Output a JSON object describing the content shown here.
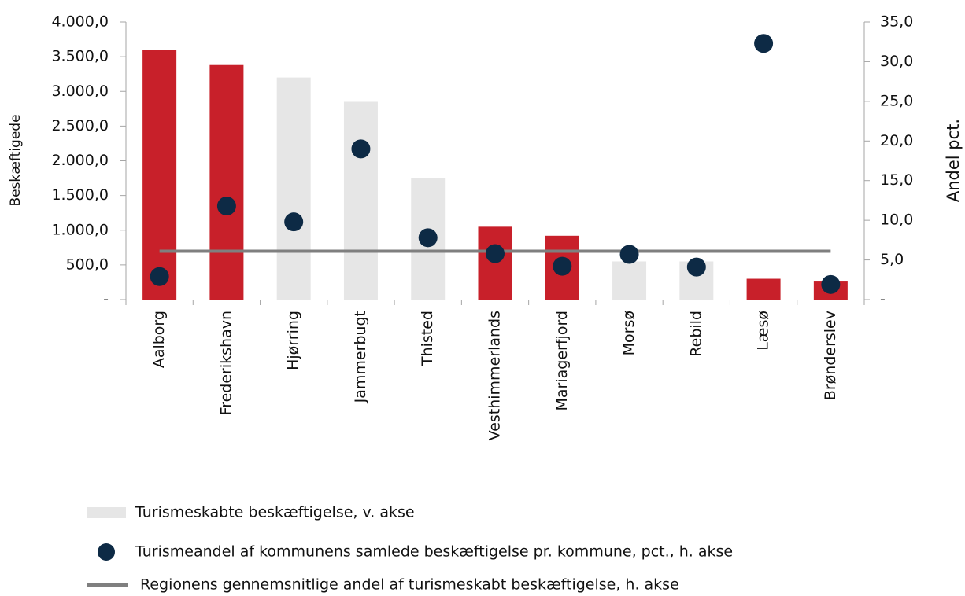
{
  "chart_data": {
    "type": "bar",
    "y_label": "Beskæftigede",
    "y2_label": "Andel pct.",
    "categories": [
      "Aalborg",
      "Frederikshavn",
      "Hjørring",
      "Jammerbugt",
      "Thisted",
      "Vesthimmerlands",
      "Mariagerfjord",
      "Morsø",
      "Rebild",
      "Læsø",
      "Brønderslev"
    ],
    "ylim": [
      0,
      4000
    ],
    "yticks": [
      {
        "value": 0,
        "label": "-"
      },
      {
        "value": 500,
        "label": "500,0"
      },
      {
        "value": 1000,
        "label": "1.000,0"
      },
      {
        "value": 1500,
        "label": "1.500,0"
      },
      {
        "value": 2000,
        "label": "2.000,0"
      },
      {
        "value": 2500,
        "label": "2.500,0"
      },
      {
        "value": 3000,
        "label": "3.000,0"
      },
      {
        "value": 3500,
        "label": "3.500,0"
      },
      {
        "value": 4000,
        "label": "4.000,0"
      }
    ],
    "y2lim": [
      0,
      35
    ],
    "y2ticks": [
      {
        "value": 0,
        "label": "-"
      },
      {
        "value": 5,
        "label": "5,0"
      },
      {
        "value": 10,
        "label": "10,0"
      },
      {
        "value": 15,
        "label": "15,0"
      },
      {
        "value": 20,
        "label": "20,0"
      },
      {
        "value": 25,
        "label": "25,0"
      },
      {
        "value": 30,
        "label": "30,0"
      },
      {
        "value": 35,
        "label": "35,0"
      }
    ],
    "series": [
      {
        "name": "Turismeskabte beskæftigelse, v. akse",
        "type": "bar",
        "color": "#e6e6e6",
        "colors": [
          "#c8202a",
          "#c8202a",
          "#e6e6e6",
          "#e6e6e6",
          "#e6e6e6",
          "#c8202a",
          "#c8202a",
          "#e6e6e6",
          "#e6e6e6",
          "#c8202a",
          "#c8202a"
        ],
        "values": [
          3600,
          3380,
          3200,
          2850,
          1750,
          1050,
          920,
          550,
          550,
          300,
          260
        ]
      },
      {
        "name": "Turismeandel af kommunens samlede beskæftigelse pr. kommune, pct., h. akse",
        "type": "scatter",
        "color": "#0d2a45",
        "axis": "y2",
        "values": [
          2.9,
          11.8,
          9.8,
          19.0,
          7.8,
          5.8,
          4.2,
          5.7,
          4.1,
          32.3,
          1.9
        ]
      },
      {
        "name": "Regionens gennemsnitlige andel af turismeskabt beskæftigelse, h. akse",
        "type": "line",
        "color": "#7f7f7f",
        "axis": "y2",
        "values": [
          6.1,
          6.1,
          6.1,
          6.1,
          6.1,
          6.1,
          6.1,
          6.1,
          6.1,
          6.1,
          6.1
        ]
      }
    ]
  }
}
